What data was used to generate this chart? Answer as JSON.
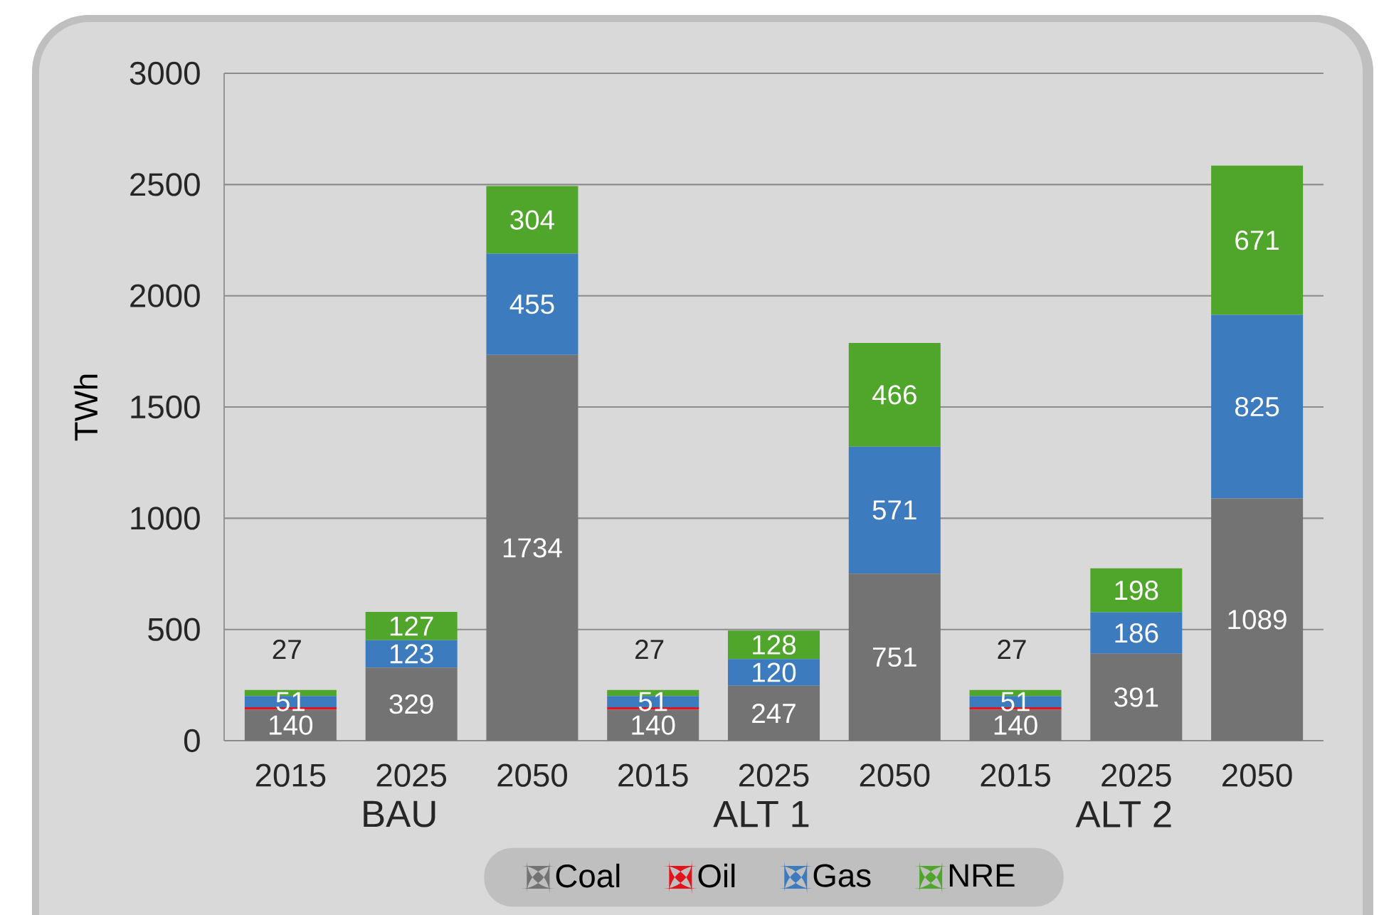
{
  "chart_data": {
    "type": "bar",
    "stacked": true,
    "ylabel": "TWh",
    "categories": [
      "2015",
      "2025",
      "2050",
      "2015",
      "2025",
      "2050",
      "2015",
      "2025",
      "2050"
    ],
    "annotations": [
      "BAU",
      "ALT 1",
      "ALT 2"
    ],
    "series": [
      {
        "name": "Coal",
        "color": "#737373",
        "values": [
          140,
          329,
          1734,
          140,
          247,
          751,
          140,
          391,
          1089
        ],
        "value_labels": [
          "140",
          "329",
          "1734",
          "140",
          "247",
          "751",
          "140",
          "391",
          "1089"
        ]
      },
      {
        "name": "Oil",
        "color": "#e3121b",
        "values": [
          10,
          0,
          0,
          10,
          0,
          0,
          10,
          0,
          0
        ]
      },
      {
        "name": "Gas",
        "color": "#3d7bbf",
        "values": [
          51,
          123,
          455,
          51,
          120,
          571,
          51,
          186,
          825
        ],
        "value_labels": [
          "51",
          "123",
          "455",
          "51",
          "120",
          "571",
          "51",
          "186",
          "825"
        ]
      },
      {
        "name": "NRE",
        "color": "#4fa62b",
        "values": [
          27,
          127,
          304,
          27,
          128,
          466,
          27,
          198,
          671
        ],
        "value_labels": [
          "27",
          "127",
          "304",
          "27",
          "128",
          "466",
          "27",
          "198",
          "671"
        ]
      }
    ],
    "ylim": [
      0,
      3000
    ],
    "yticks": [
      0,
      500,
      1000,
      1500,
      2000,
      2500,
      3000
    ],
    "grid": "y",
    "legend": "bottom"
  }
}
